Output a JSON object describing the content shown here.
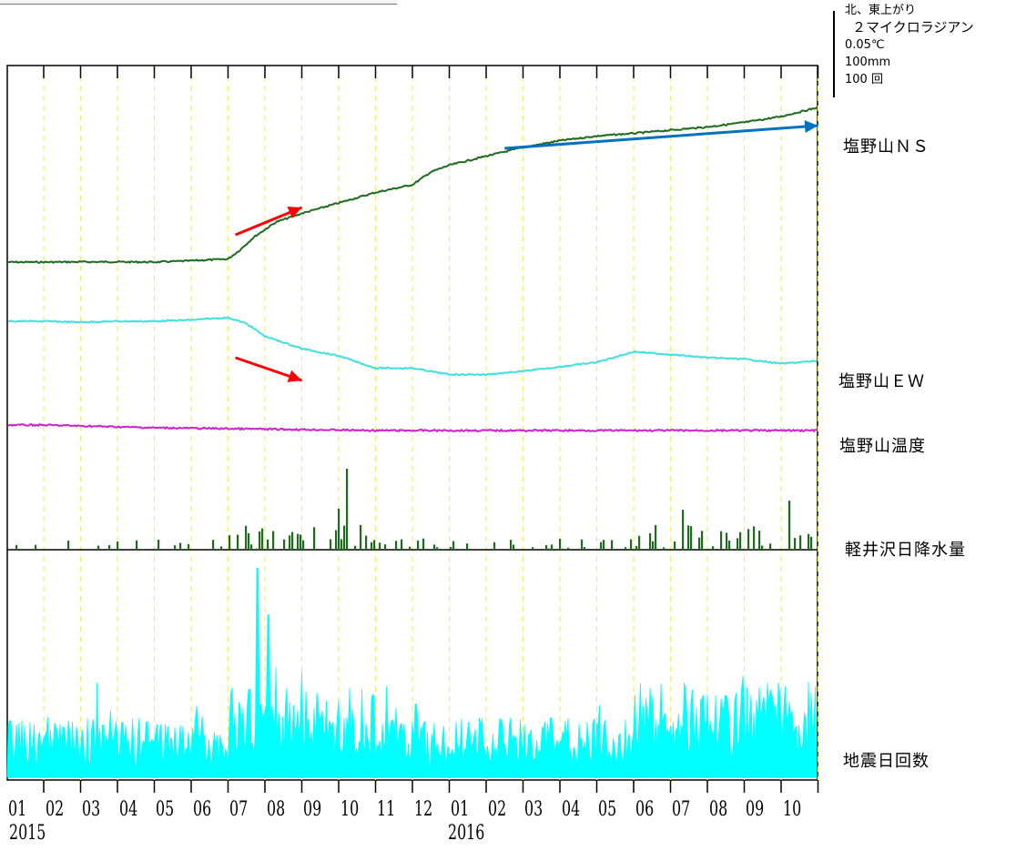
{
  "scale_legend": {
    "rows": [
      "北、東上がり",
      "２マイクロラジアン",
      "0.05℃",
      "100mm",
      "100 回"
    ]
  },
  "series_labels": {
    "ns": "塩野山ＮＳ",
    "ew": "塩野山ＥＷ",
    "temp": "塩野山温度",
    "rain": "軽井沢日降水量",
    "quake": "地震日回数"
  },
  "chart_data": {
    "type": "line",
    "categories": [
      "01",
      "02",
      "03",
      "04",
      "05",
      "06",
      "07",
      "08",
      "09",
      "10",
      "11",
      "12",
      "01",
      "02",
      "03",
      "04",
      "05",
      "06",
      "07",
      "08",
      "09",
      "10"
    ],
    "years": [
      {
        "label": "2015",
        "at_month_index": 0
      },
      {
        "label": "2016",
        "at_month_index": 12
      }
    ],
    "unit_legend": [
      "２マイクロラジアン",
      "0.05℃",
      "100mm",
      "100 回"
    ],
    "series": [
      {
        "name": "塩野山ＮＳ",
        "unit": "microradian",
        "color": "#1e6b1e",
        "points": [
          [
            0,
            0
          ],
          [
            1,
            0.05
          ],
          [
            2,
            0.05
          ],
          [
            3,
            0
          ],
          [
            4,
            0.3
          ],
          [
            5,
            0.7
          ],
          [
            5.3,
            2.5
          ],
          [
            5.7,
            5.5
          ],
          [
            6.3,
            8.8
          ],
          [
            7,
            10.7
          ],
          [
            8,
            13
          ],
          [
            9,
            15.3
          ],
          [
            10,
            17
          ],
          [
            10.5,
            19.8
          ],
          [
            11,
            21.3
          ],
          [
            12,
            23.3
          ],
          [
            13,
            25.2
          ],
          [
            14,
            26.7
          ],
          [
            15,
            27.7
          ],
          [
            16,
            28.3
          ],
          [
            17,
            29
          ],
          [
            18,
            29.7
          ],
          [
            19,
            30.7
          ],
          [
            20,
            32
          ],
          [
            21,
            34
          ]
        ],
        "trend_arrows": [
          {
            "color": "#ff0000",
            "from": [
              5.2,
              6
            ],
            "to": [
              7,
              12
            ]
          },
          {
            "color": "#0070c0",
            "from": [
              12.5,
              25
            ],
            "to": [
              21,
              30
            ]
          }
        ]
      },
      {
        "name": "塩野山ＥＷ",
        "unit": "microradian",
        "color": "#40e0e0",
        "points": [
          [
            0,
            0
          ],
          [
            1,
            -0.2
          ],
          [
            2,
            0
          ],
          [
            3,
            0
          ],
          [
            4,
            0.3
          ],
          [
            5,
            0.8
          ],
          [
            5.5,
            -0.5
          ],
          [
            6,
            -3.3
          ],
          [
            7,
            -6
          ],
          [
            8,
            -7.6
          ],
          [
            9,
            -10.3
          ],
          [
            10,
            -10.3
          ],
          [
            11,
            -11.7
          ],
          [
            12,
            -11.7
          ],
          [
            13,
            -11
          ],
          [
            14,
            -10
          ],
          [
            15,
            -9
          ],
          [
            16,
            -6.7
          ],
          [
            17,
            -7.3
          ],
          [
            18,
            -8
          ],
          [
            19,
            -8.3
          ],
          [
            20,
            -9.3
          ],
          [
            21,
            -8.7
          ]
        ],
        "trend_arrows": [
          {
            "color": "#ff0000",
            "from": [
              5.2,
              -8
            ],
            "to": [
              7,
              -13
            ]
          }
        ]
      },
      {
        "name": "塩野山温度",
        "unit": "degC",
        "color": "#cc22cc",
        "points": [
          [
            0,
            0
          ],
          [
            3,
            -0.01
          ],
          [
            6,
            -0.015
          ],
          [
            9,
            -0.02
          ],
          [
            12,
            -0.02
          ],
          [
            15,
            -0.02
          ],
          [
            18,
            -0.02
          ],
          [
            21,
            -0.02
          ]
        ]
      },
      {
        "name": "軽井沢日降水量",
        "unit": "mm",
        "type": "bar",
        "color": "#1e6b1e",
        "max": 71,
        "peaks": [
          {
            "month": 8.2,
            "value": 71
          },
          {
            "month": 8.0,
            "value": 36
          },
          {
            "month": 20.2,
            "value": 43
          },
          {
            "month": 17.3,
            "value": 35
          }
        ]
      },
      {
        "name": "地震日回数",
        "unit": "count",
        "type": "area",
        "color": "#00ffff",
        "max": 129,
        "peaks": [
          {
            "month": 5.8,
            "value": 129
          },
          {
            "month": 6.1,
            "value": 100
          },
          {
            "month": 7.0,
            "value": 65
          },
          {
            "month": 10.1,
            "value": 45
          },
          {
            "month": 21.2,
            "value": 49
          }
        ],
        "baseline": 15
      }
    ]
  }
}
